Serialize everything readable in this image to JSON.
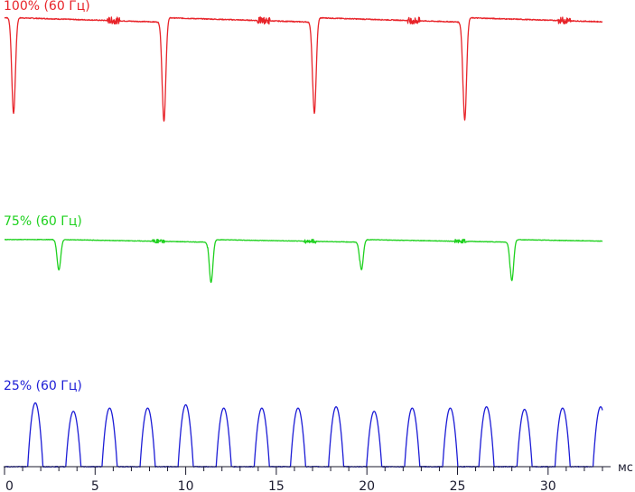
{
  "chart_data": {
    "type": "line",
    "xlabel": "мс",
    "xlim": [
      0,
      33.5
    ],
    "xticks": [
      0,
      5,
      10,
      15,
      20,
      25,
      30
    ],
    "grid": false,
    "legend": "none",
    "series": [
      {
        "name": "100% (60 Гц)",
        "color": "#e8242a",
        "kind": "dips",
        "baseline_level": 0.955,
        "dip_level": 0.17,
        "dips_ms": [
          0.5,
          8.8,
          17.1,
          25.4
        ],
        "dip_depths": [
          0.86,
          0.93,
          0.86,
          0.92
        ]
      },
      {
        "name": "75% (60 Гц)",
        "color": "#1fd11f",
        "kind": "dips",
        "baseline_level": 0.96,
        "dip_level": 0.55,
        "dips_ms": [
          3.0,
          11.4,
          19.7,
          28.0
        ],
        "dip_depths": [
          0.47,
          0.66,
          0.46,
          0.63
        ]
      },
      {
        "name": "25% (60 Гц)",
        "color": "#1c1cd6",
        "kind": "pulses",
        "baseline_level": 0.0,
        "pulse_level": 0.85,
        "pulses_ms": [
          1.7,
          3.8,
          5.8,
          7.9,
          10.0,
          12.1,
          14.2,
          16.2,
          18.3,
          20.4,
          22.5,
          24.6,
          26.6,
          28.7,
          30.8,
          32.9
        ],
        "pulse_heights": [
          0.98,
          0.85,
          0.9,
          0.9,
          0.95,
          0.9,
          0.9,
          0.9,
          0.92,
          0.85,
          0.9,
          0.9,
          0.92,
          0.88,
          0.9,
          0.92
        ]
      }
    ]
  }
}
